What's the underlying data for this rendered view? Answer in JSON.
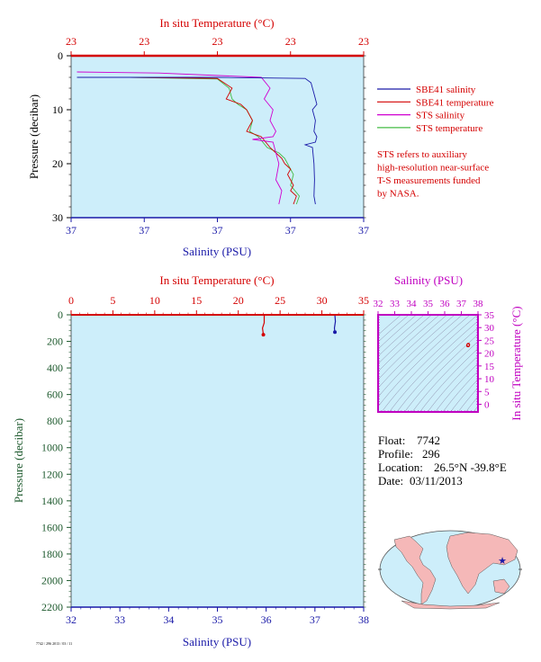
{
  "colors": {
    "plot_bg": "#cdeefa",
    "salinity": "#1a1aa8",
    "temperature": "#d40000",
    "sts_salinity": "#d000d0",
    "sts_temperature": "#44bb44",
    "ts_box": "#c000c0",
    "pressure_axis": "#1e5a2e",
    "land": "#f5b8b8"
  },
  "top_chart": {
    "title_top": "In situ Temperature (°C)",
    "temp_ticks": [
      "23",
      "23",
      "23",
      "23",
      "23"
    ],
    "sal_ticks": [
      "37",
      "37",
      "37",
      "37",
      "37"
    ],
    "ylabel": "Pressure (decibar)",
    "xlabel": "Salinity (PSU)",
    "p_ticks": [
      "0",
      "10",
      "20",
      "30"
    ],
    "legend": [
      {
        "label": "SBE41 salinity",
        "color": "#1a1aa8"
      },
      {
        "label": "SBE41 temperature",
        "color": "#d40000"
      },
      {
        "label": "STS salinity",
        "color": "#d000d0"
      },
      {
        "label": "STS temperature",
        "color": "#44bb44"
      }
    ],
    "note": [
      "STS refers to auxiliary",
      "high-resolution near-surface",
      "T-S measurements funded",
      "by NASA."
    ]
  },
  "bottom_chart": {
    "title_top": "In situ Temperature (°C)",
    "ylabel": "Pressure (decibar)",
    "xlabel": "Salinity (PSU)"
  },
  "ts_diagram": {
    "title": "Salinity (PSU)",
    "ylabel": "In situ Temperature (°C)",
    "s_ticks": [
      "32",
      "33",
      "34",
      "35",
      "36",
      "37",
      "38"
    ],
    "t_ticks": [
      "35",
      "30",
      "25",
      "20",
      "15",
      "10",
      "5",
      "0"
    ]
  },
  "info": {
    "float_label": "Float:",
    "float_value": "7742",
    "profile_label": "Profile:",
    "profile_value": "296",
    "location_label": "Location:",
    "location_value": "26.5°N  -39.8°E",
    "date_label": "Date:",
    "date_value": "03/11/2013"
  },
  "footer": "7742 / 296 2013 / 03 / 11",
  "chart_data": [
    {
      "type": "line",
      "title": "In situ Temperature (°C)",
      "xlabel": "Salinity (PSU)",
      "ylabel": "Pressure (decibar)",
      "ylim": [
        30,
        0
      ],
      "series": [
        {
          "name": "SBE41 salinity",
          "axis": "salinity",
          "x": [
            0.02,
            0.5,
            0.8,
            0.82,
            0.83,
            0.84,
            0.825,
            0.835,
            0.83,
            0.84,
            0.835,
            0.8,
            0.825,
            0.83,
            0.832,
            0.83,
            0.835
          ],
          "y": [
            4.0,
            4.0,
            4.2,
            5,
            7,
            9,
            10,
            12,
            14,
            15,
            16,
            16.5,
            17,
            20,
            23,
            26,
            27.5
          ]
        },
        {
          "name": "SBE41 temperature",
          "axis": "temperature",
          "x": [
            0.02,
            0.2,
            0.5,
            0.55,
            0.53,
            0.58,
            0.6,
            0.62,
            0.6,
            0.65,
            0.68,
            0.7,
            0.72,
            0.73,
            0.75,
            0.74,
            0.76,
            0.75,
            0.77,
            0.76
          ],
          "y": [
            4.0,
            4.0,
            4.2,
            6,
            8,
            9,
            10,
            12,
            14,
            15,
            17,
            18,
            19,
            20,
            21,
            22,
            24,
            25,
            26,
            27.5
          ]
        },
        {
          "name": "STS salinity",
          "axis": "salinity",
          "x": [
            0.02,
            0.3,
            0.65,
            0.68,
            0.66,
            0.69,
            0.68,
            0.7,
            0.69,
            0.62,
            0.69,
            0.7,
            0.71,
            0.7,
            0.72,
            0.71
          ],
          "y": [
            3.0,
            3.2,
            4.0,
            6,
            8,
            10,
            12,
            14,
            15,
            15.5,
            16,
            18,
            20,
            23,
            25,
            27.5
          ]
        },
        {
          "name": "STS temperature",
          "axis": "temperature",
          "x": [
            0.02,
            0.2,
            0.5,
            0.54,
            0.55,
            0.57,
            0.6,
            0.62,
            0.61,
            0.64,
            0.67,
            0.71,
            0.73,
            0.74,
            0.76,
            0.75,
            0.78,
            0.77
          ],
          "y": [
            4.0,
            4.0,
            4.3,
            6,
            8,
            9,
            10,
            12,
            14,
            15,
            17,
            18,
            19,
            20,
            22,
            24,
            26,
            27.5
          ]
        }
      ]
    },
    {
      "type": "line",
      "title": "In situ Temperature (°C)",
      "xlabel": "Salinity (PSU)",
      "ylabel": "Pressure (decibar)",
      "xlim_salinity": [
        32,
        38
      ],
      "xlim_temperature": [
        0,
        35
      ],
      "ylim": [
        2200,
        0
      ],
      "temp_ticks": [
        0,
        5,
        10,
        15,
        20,
        25,
        30,
        35
      ],
      "sal_ticks": [
        32,
        33,
        34,
        35,
        36,
        37,
        38
      ],
      "p_ticks": [
        0,
        200,
        400,
        600,
        800,
        1000,
        1200,
        1400,
        1600,
        1800,
        2000,
        2200
      ],
      "series": [
        {
          "name": "SBE41 salinity",
          "axis": "salinity",
          "x": [
            37.41,
            37.42,
            37.4,
            37.41
          ],
          "y": [
            0,
            50,
            100,
            130
          ]
        },
        {
          "name": "SBE41 temperature",
          "axis": "temperature",
          "x": [
            23.1,
            23.1,
            22.9,
            23.0
          ],
          "y": [
            0,
            60,
            100,
            150
          ]
        }
      ]
    },
    {
      "type": "scatter",
      "title": "Salinity (PSU)",
      "xlabel": "Salinity (PSU)",
      "ylabel": "In situ Temperature (°C)",
      "xlim": [
        32,
        38
      ],
      "ylim": [
        -3,
        35
      ],
      "series": [
        {
          "name": "profile",
          "x": [
            37.4,
            37.42
          ],
          "y": [
            23.0,
            23.3
          ]
        }
      ]
    }
  ]
}
